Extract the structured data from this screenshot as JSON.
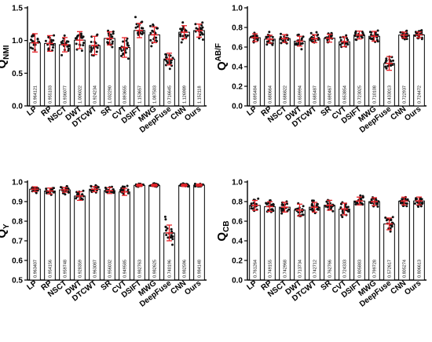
{
  "chart_data": [
    {
      "type": "bar",
      "ylabel_main": "Q",
      "ylabel_sub": "NMI",
      "ylabel_sup": "",
      "ylim": [
        0,
        1.5
      ],
      "yticks": [
        0.0,
        0.5,
        1.0,
        1.5
      ],
      "tick_decimals": 1,
      "categories": [
        "LP",
        "RP",
        "NSCT",
        "DWT",
        "DTCWT",
        "SR",
        "CVT",
        "DSIFT",
        "MWG",
        "DeepFuse",
        "CNN",
        "Ours"
      ],
      "value_labels": [
        "0.964121",
        "0.955103",
        "0.936077",
        "1.006022",
        "0.924234",
        "1.032290",
        "0.893655",
        "1.153657",
        "1.087503",
        "0.716645",
        "1.126989",
        "1.152118"
      ],
      "values": [
        0.964121,
        0.955103,
        0.936077,
        1.006022,
        0.924234,
        1.03229,
        0.893655,
        1.153657,
        1.087503,
        0.716645,
        1.126989,
        1.152118
      ],
      "errors": [
        0.14,
        0.12,
        0.11,
        0.13,
        0.14,
        0.1,
        0.15,
        0.11,
        0.12,
        0.09,
        0.1,
        0.1
      ],
      "spreads": [
        0.18,
        0.16,
        0.15,
        0.17,
        0.18,
        0.14,
        0.19,
        0.16,
        0.17,
        0.12,
        0.14,
        0.13
      ]
    },
    {
      "type": "bar",
      "ylabel_main": "Q",
      "ylabel_sub": "",
      "ylabel_sup": "AB/F",
      "ylim": [
        0,
        1.0
      ],
      "yticks": [
        0.0,
        0.2,
        0.4,
        0.6,
        0.8,
        1.0
      ],
      "tick_decimals": 1,
      "categories": [
        "LP",
        "RP",
        "NSCT",
        "DWT",
        "DTCWT",
        "SR",
        "CVT",
        "DSIFT",
        "MWG",
        "DeepFuse",
        "CNN",
        "Ours"
      ],
      "value_labels": [
        "0.695484",
        "0.680664",
        "0.686822",
        "0.659994",
        "0.685487",
        "0.690467",
        "0.653854",
        "0.723025",
        "0.710108",
        "0.433013",
        "0.722937",
        "0.724472"
      ],
      "values": [
        0.695484,
        0.680664,
        0.686822,
        0.659994,
        0.685487,
        0.690467,
        0.653854,
        0.723025,
        0.710108,
        0.433013,
        0.722937,
        0.724472
      ],
      "errors": [
        0.04,
        0.04,
        0.04,
        0.05,
        0.04,
        0.04,
        0.05,
        0.04,
        0.05,
        0.07,
        0.03,
        0.03
      ],
      "spreads": [
        0.06,
        0.06,
        0.06,
        0.07,
        0.06,
        0.06,
        0.07,
        0.05,
        0.06,
        0.1,
        0.05,
        0.05
      ]
    },
    {
      "type": "bar",
      "ylabel_main": "Q",
      "ylabel_sub": "Y",
      "ylabel_sup": "",
      "ylim": [
        0.5,
        1.0
      ],
      "yticks": [
        0.5,
        0.6,
        0.7,
        0.8,
        0.9,
        1.0
      ],
      "tick_decimals": 1,
      "categories": [
        "LP",
        "RP",
        "NSCT",
        "DWT",
        "DTCWT",
        "SR",
        "CVT",
        "DSIFT",
        "MWG",
        "DeepFuse",
        "CNN",
        "Ours"
      ],
      "value_labels": [
        "0.963407",
        "0.954156",
        "0.959748",
        "0.928359",
        "0.963087",
        "0.956032",
        "0.949585",
        "0.982763",
        "0.982625",
        "0.740196",
        "0.982596",
        "0.984148"
      ],
      "values": [
        0.963407,
        0.954156,
        0.959748,
        0.928359,
        0.963087,
        0.956032,
        0.949585,
        0.982763,
        0.982625,
        0.740196,
        0.982596,
        0.984148
      ],
      "errors": [
        0.012,
        0.015,
        0.012,
        0.022,
        0.013,
        0.015,
        0.018,
        0.006,
        0.006,
        0.04,
        0.006,
        0.006
      ],
      "spreads": [
        0.02,
        0.025,
        0.02,
        0.035,
        0.02,
        0.025,
        0.03,
        0.01,
        0.01,
        0.07,
        0.01,
        0.01
      ]
    },
    {
      "type": "bar",
      "ylabel_main": "Q",
      "ylabel_sub": "CB",
      "ylabel_sup": "",
      "ylim": [
        0,
        1.0
      ],
      "yticks": [
        0.0,
        0.2,
        0.4,
        0.6,
        0.8,
        1.0
      ],
      "tick_decimals": 1,
      "categories": [
        "LP",
        "RP",
        "NSCT",
        "DWT",
        "DTCWT",
        "SR",
        "CVT",
        "DSIFT",
        "MWG",
        "DeepFuse",
        "CNN",
        "Ours"
      ],
      "value_labels": [
        "0.761264",
        "0.749155",
        "0.742968",
        "0.713734",
        "0.742712",
        "0.762766",
        "0.724333",
        "0.805883",
        "0.799728",
        "0.572617",
        "0.805274",
        "0.806613"
      ],
      "values": [
        0.761264,
        0.749155,
        0.742968,
        0.713734,
        0.742712,
        0.762766,
        0.724333,
        0.805883,
        0.799728,
        0.572617,
        0.805274,
        0.806613
      ],
      "errors": [
        0.05,
        0.05,
        0.05,
        0.06,
        0.05,
        0.05,
        0.06,
        0.04,
        0.04,
        0.06,
        0.04,
        0.04
      ],
      "spreads": [
        0.07,
        0.07,
        0.07,
        0.08,
        0.07,
        0.07,
        0.08,
        0.06,
        0.06,
        0.09,
        0.06,
        0.06
      ]
    }
  ],
  "colors": {
    "bar_fill": "#ffffff",
    "bar_stroke": "#000000",
    "point": "#111111",
    "error_bar": "#e8242a",
    "text": "#000000"
  }
}
